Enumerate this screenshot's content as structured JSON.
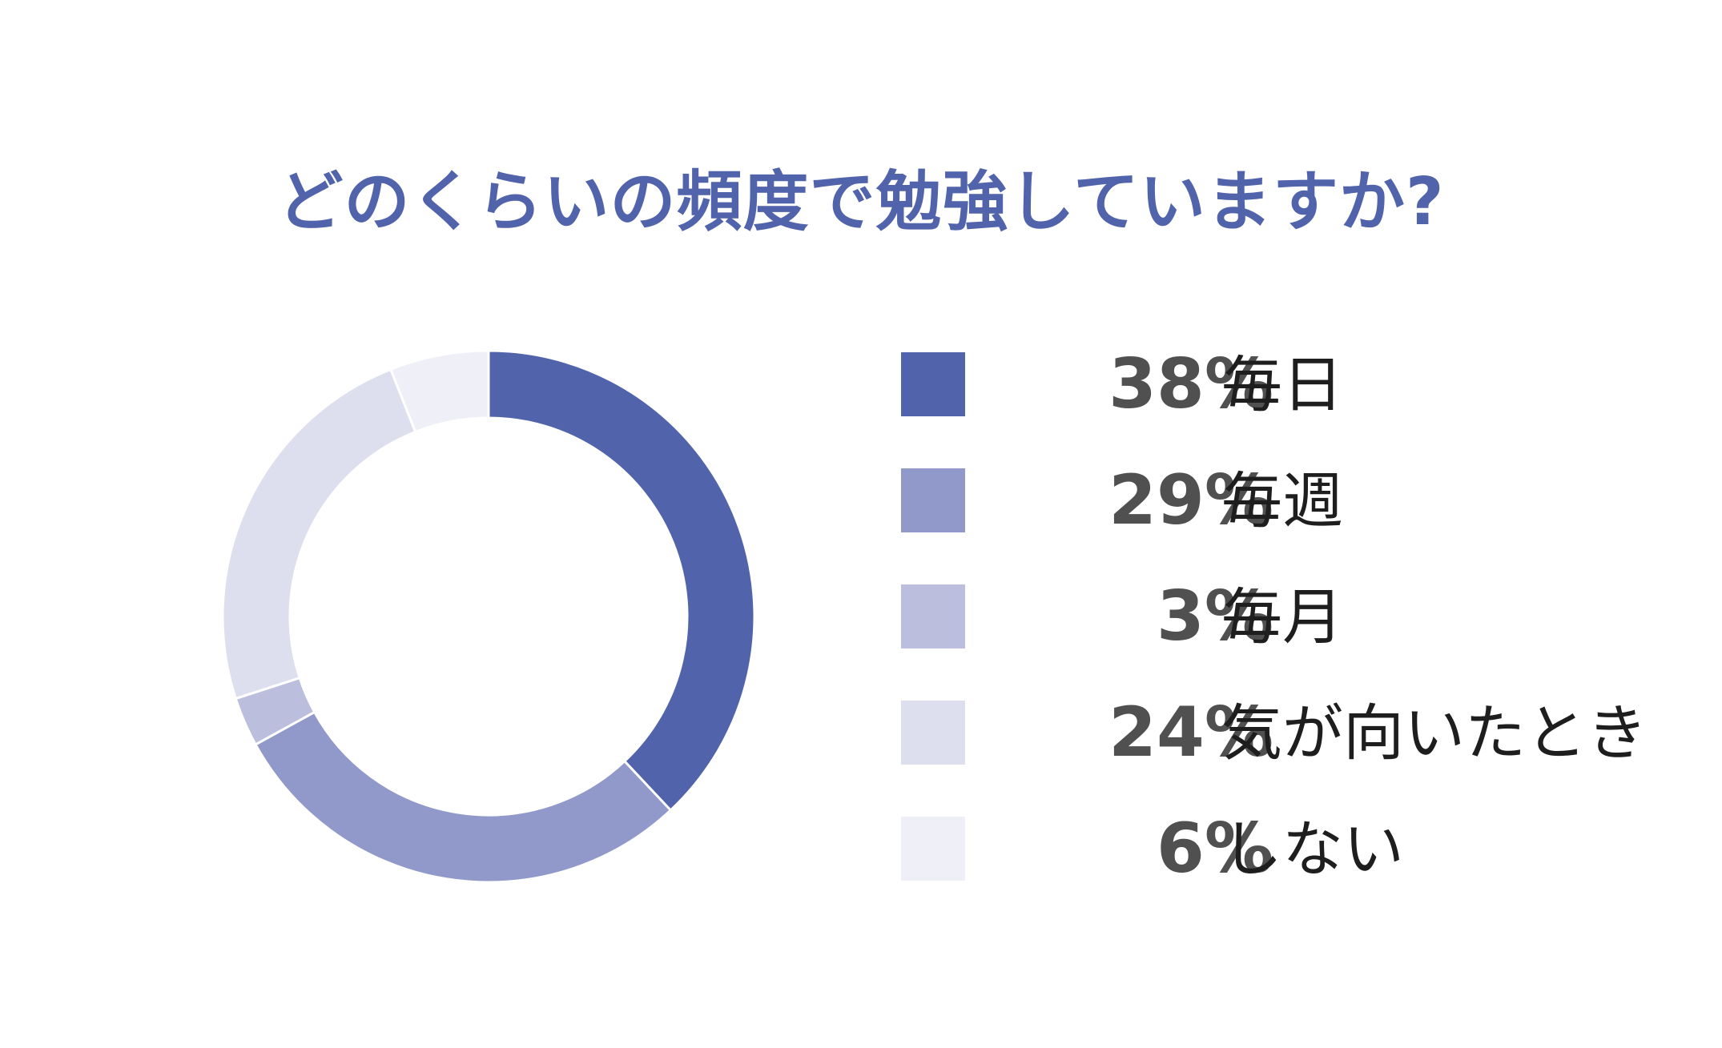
{
  "chart_data": {
    "type": "pie",
    "title": "どのくらいの頻度で勉強していますか?",
    "categories": [
      "毎日",
      "毎週",
      "毎月",
      "気が向いたとき",
      "しない"
    ],
    "values": [
      38,
      29,
      3,
      24,
      6
    ],
    "value_labels": [
      "38%",
      "29%",
      "3%",
      "24%",
      "6%"
    ],
    "unit": "%",
    "colors": [
      "#5163ab",
      "#9099c9",
      "#bbbedd",
      "#dddfee",
      "#eeeff7"
    ],
    "donut": true,
    "legend_position": "right"
  }
}
